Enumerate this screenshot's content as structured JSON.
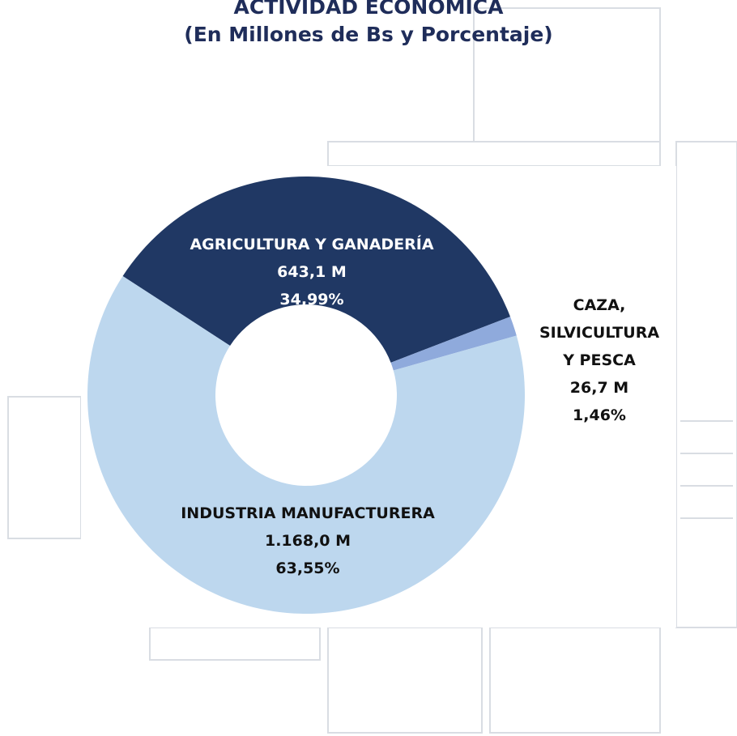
{
  "chart_data": {
    "type": "donut",
    "title": "ACTIVIDAD ECONÓMICA",
    "subtitle": "(En Millones de Bs y Porcentaje)",
    "categories": [
      "AGRICULTURA Y GANADERÍA",
      "CAZA, SILVICULTURA Y PESCA",
      "INDUSTRIA MANUFACTURERA"
    ],
    "values": [
      643.1,
      26.7,
      1168.0
    ],
    "value_labels": [
      "643,1 M",
      "26,7 M",
      "1.168,0 M"
    ],
    "percentages": [
      34.99,
      1.46,
      63.55
    ],
    "percentage_labels": [
      "34,99%",
      "1,46%",
      "63,55%"
    ],
    "colors": [
      "#203864",
      "#8faadc",
      "#bdd7ee"
    ]
  }
}
